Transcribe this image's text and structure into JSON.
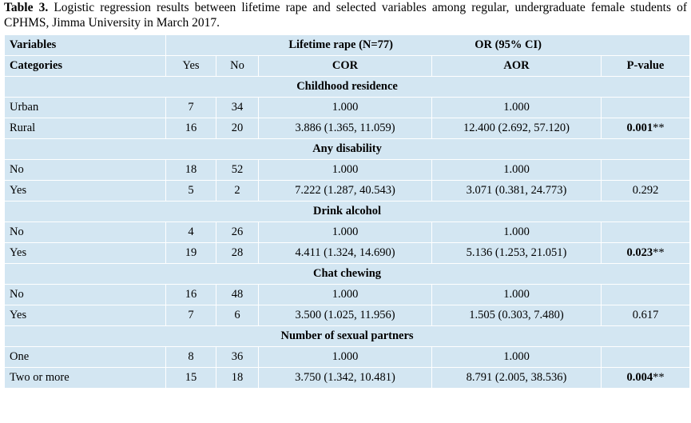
{
  "caption": {
    "label": "Table 3.",
    "text": "Logistic regression results between lifetime rape and selected variables among regular, undergraduate female students of CPHMS, Jimma University in March 2017."
  },
  "header": {
    "variables": "Variables",
    "lifetime_rape": "Lifetime rape (N=77)",
    "or_ci": "OR (95% CI)",
    "categories": "Categories",
    "yes": "Yes",
    "no": "No",
    "cor": "COR",
    "aor": "AOR",
    "pvalue": "P-value"
  },
  "sections": [
    {
      "title": "Childhood residence",
      "rows": [
        {
          "category": "Urban",
          "yes": "7",
          "no": "34",
          "cor": "1.000",
          "aor": "1.000",
          "p": "",
          "p_bold": false
        },
        {
          "category": "Rural",
          "yes": "16",
          "no": "20",
          "cor": "3.886 (1.365, 11.059)",
          "aor": "12.400 (2.692, 57.120)",
          "p": "0.001",
          "p_bold": true,
          "p_suffix": "**"
        }
      ]
    },
    {
      "title": "Any disability",
      "rows": [
        {
          "category": "No",
          "yes": "18",
          "no": "52",
          "cor": "1.000",
          "aor": "1.000",
          "p": "",
          "p_bold": false
        },
        {
          "category": "Yes",
          "yes": "5",
          "no": "2",
          "cor": "7.222 (1.287, 40.543)",
          "aor": "3.071 (0.381, 24.773)",
          "p": "0.292",
          "p_bold": false
        }
      ]
    },
    {
      "title": "Drink alcohol",
      "rows": [
        {
          "category": "No",
          "yes": "4",
          "no": "26",
          "cor": "1.000",
          "aor": "1.000",
          "p": "",
          "p_bold": false
        },
        {
          "category": "Yes",
          "yes": "19",
          "no": "28",
          "cor": "4.411 (1.324, 14.690)",
          "aor": "5.136 (1.253, 21.051)",
          "p": "0.023",
          "p_bold": true,
          "p_suffix": "**"
        }
      ]
    },
    {
      "title": "Chat chewing",
      "rows": [
        {
          "category": "No",
          "yes": "16",
          "no": "48",
          "cor": "1.000",
          "aor": "1.000",
          "p": "",
          "p_bold": false
        },
        {
          "category": "Yes",
          "yes": "7",
          "no": "6",
          "cor": "3.500 (1.025, 11.956)",
          "aor": "1.505 (0.303, 7.480)",
          "p": "0.617",
          "p_bold": false
        }
      ]
    },
    {
      "title": "Number of sexual partners",
      "rows": [
        {
          "category": "One",
          "yes": "8",
          "no": "36",
          "cor": "1.000",
          "aor": "1.000",
          "p": "",
          "p_bold": false
        },
        {
          "category": "Two or more",
          "yes": "15",
          "no": "18",
          "cor": "3.750 (1.342, 10.481)",
          "aor": "8.791 (2.005, 38.536)",
          "p": "0.004",
          "p_bold": true,
          "p_suffix": "**"
        }
      ]
    }
  ],
  "colors": {
    "cell_background": "#d3e6f2",
    "border": "#ffffff"
  }
}
